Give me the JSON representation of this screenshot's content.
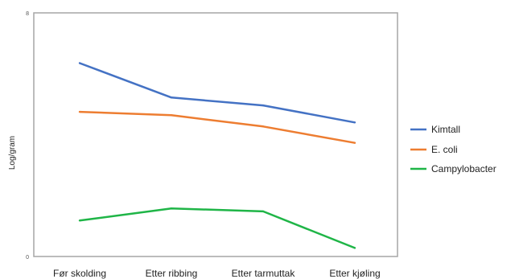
{
  "chart_data": {
    "type": "line",
    "title": "",
    "xlabel": "",
    "ylabel": "Log/gram",
    "categories": [
      "Før skolding",
      "Etter ribbing",
      "Etter tarmuttak",
      "Etter kjøling"
    ],
    "y_tick_labels": [
      "0",
      "8"
    ],
    "ylim": [
      0,
      8
    ],
    "grid": false,
    "legend_position": "right",
    "series": [
      {
        "name": "Kimtall",
        "color": "#4472c4",
        "values": [
          6.35,
          5.22,
          4.96,
          4.4
        ]
      },
      {
        "name": "E. coli",
        "color": "#ed7d31",
        "values": [
          4.75,
          4.64,
          4.27,
          3.73
        ]
      },
      {
        "name": "Campylobacter",
        "color": "#1fb547",
        "values": [
          1.18,
          1.58,
          1.48,
          0.28
        ]
      }
    ]
  }
}
